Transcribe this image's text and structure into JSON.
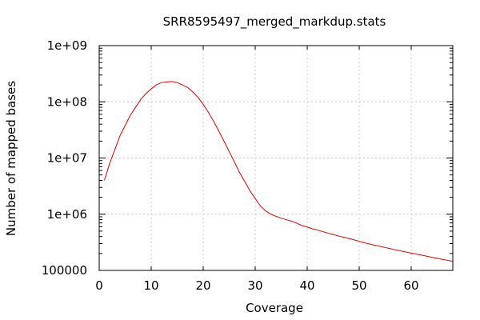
{
  "chart_data": {
    "type": "line",
    "title": "SRR8595497_merged_markdup.stats",
    "xlabel": "Coverage",
    "ylabel": "Number of mapped bases",
    "xlim": [
      0,
      68
    ],
    "ylim": [
      100000,
      1000000000
    ],
    "yscale": "log",
    "grid": true,
    "x_ticks": [
      0,
      10,
      20,
      30,
      40,
      50,
      60
    ],
    "x_tick_labels": [
      "0",
      "10",
      "20",
      "30",
      "40",
      "50",
      "60"
    ],
    "y_ticks": [
      100000,
      1000000,
      10000000,
      100000000,
      1000000000
    ],
    "y_tick_labels": [
      "100000",
      "1e+06",
      "1e+07",
      "1e+08",
      "1e+09"
    ],
    "series": [
      {
        "color": "#e00000",
        "x": [
          1,
          2,
          3,
          4,
          5,
          6,
          7,
          8,
          9,
          10,
          11,
          12,
          13,
          14,
          15,
          16,
          17,
          18,
          19,
          20,
          21,
          22,
          23,
          24,
          25,
          26,
          27,
          28,
          29,
          30,
          31,
          32,
          33,
          34,
          35,
          36,
          37,
          38,
          39,
          40,
          41,
          42,
          43,
          44,
          45,
          46,
          47,
          48,
          49,
          50,
          51,
          52,
          53,
          54,
          55,
          56,
          57,
          58,
          59,
          60,
          61,
          62,
          63,
          64,
          65,
          66,
          67,
          68
        ],
        "y": [
          4000000,
          8000000,
          14000000,
          25000000,
          38000000,
          58000000,
          80000000,
          110000000,
          140000000,
          170000000,
          200000000,
          220000000,
          225000000,
          230000000,
          220000000,
          200000000,
          180000000,
          150000000,
          120000000,
          90000000,
          65000000,
          45000000,
          30000000,
          20000000,
          13000000,
          8500000,
          5500000,
          3800000,
          2600000,
          1900000,
          1400000,
          1150000,
          1000000,
          920000,
          850000,
          800000,
          750000,
          690000,
          630000,
          590000,
          550000,
          520000,
          490000,
          460000,
          435000,
          410000,
          390000,
          370000,
          350000,
          330000,
          310000,
          295000,
          280000,
          268000,
          255000,
          243000,
          232000,
          222000,
          212000,
          203000,
          195000,
          187000,
          179000,
          171000,
          164000,
          157000,
          151000,
          145000
        ]
      }
    ]
  }
}
